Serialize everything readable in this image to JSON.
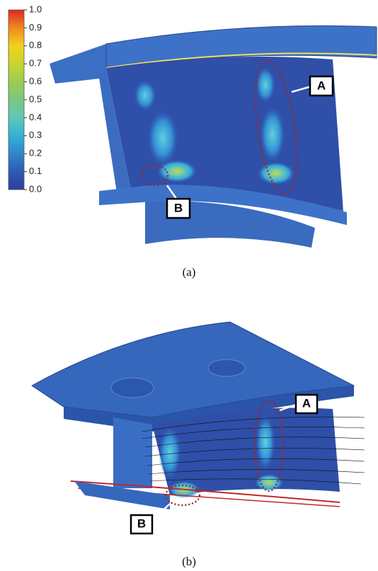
{
  "colorbar": {
    "ticks": [
      "1.0",
      "0.9",
      "0.8",
      "0.7",
      "0.6",
      "0.5",
      "0.4",
      "0.3",
      "0.2",
      "0.1",
      "0.0"
    ]
  },
  "panels": [
    {
      "callouts": [
        "A",
        "B"
      ],
      "caption": "(a)"
    },
    {
      "callouts": [
        "A",
        "B"
      ],
      "caption": "(b)"
    }
  ]
}
